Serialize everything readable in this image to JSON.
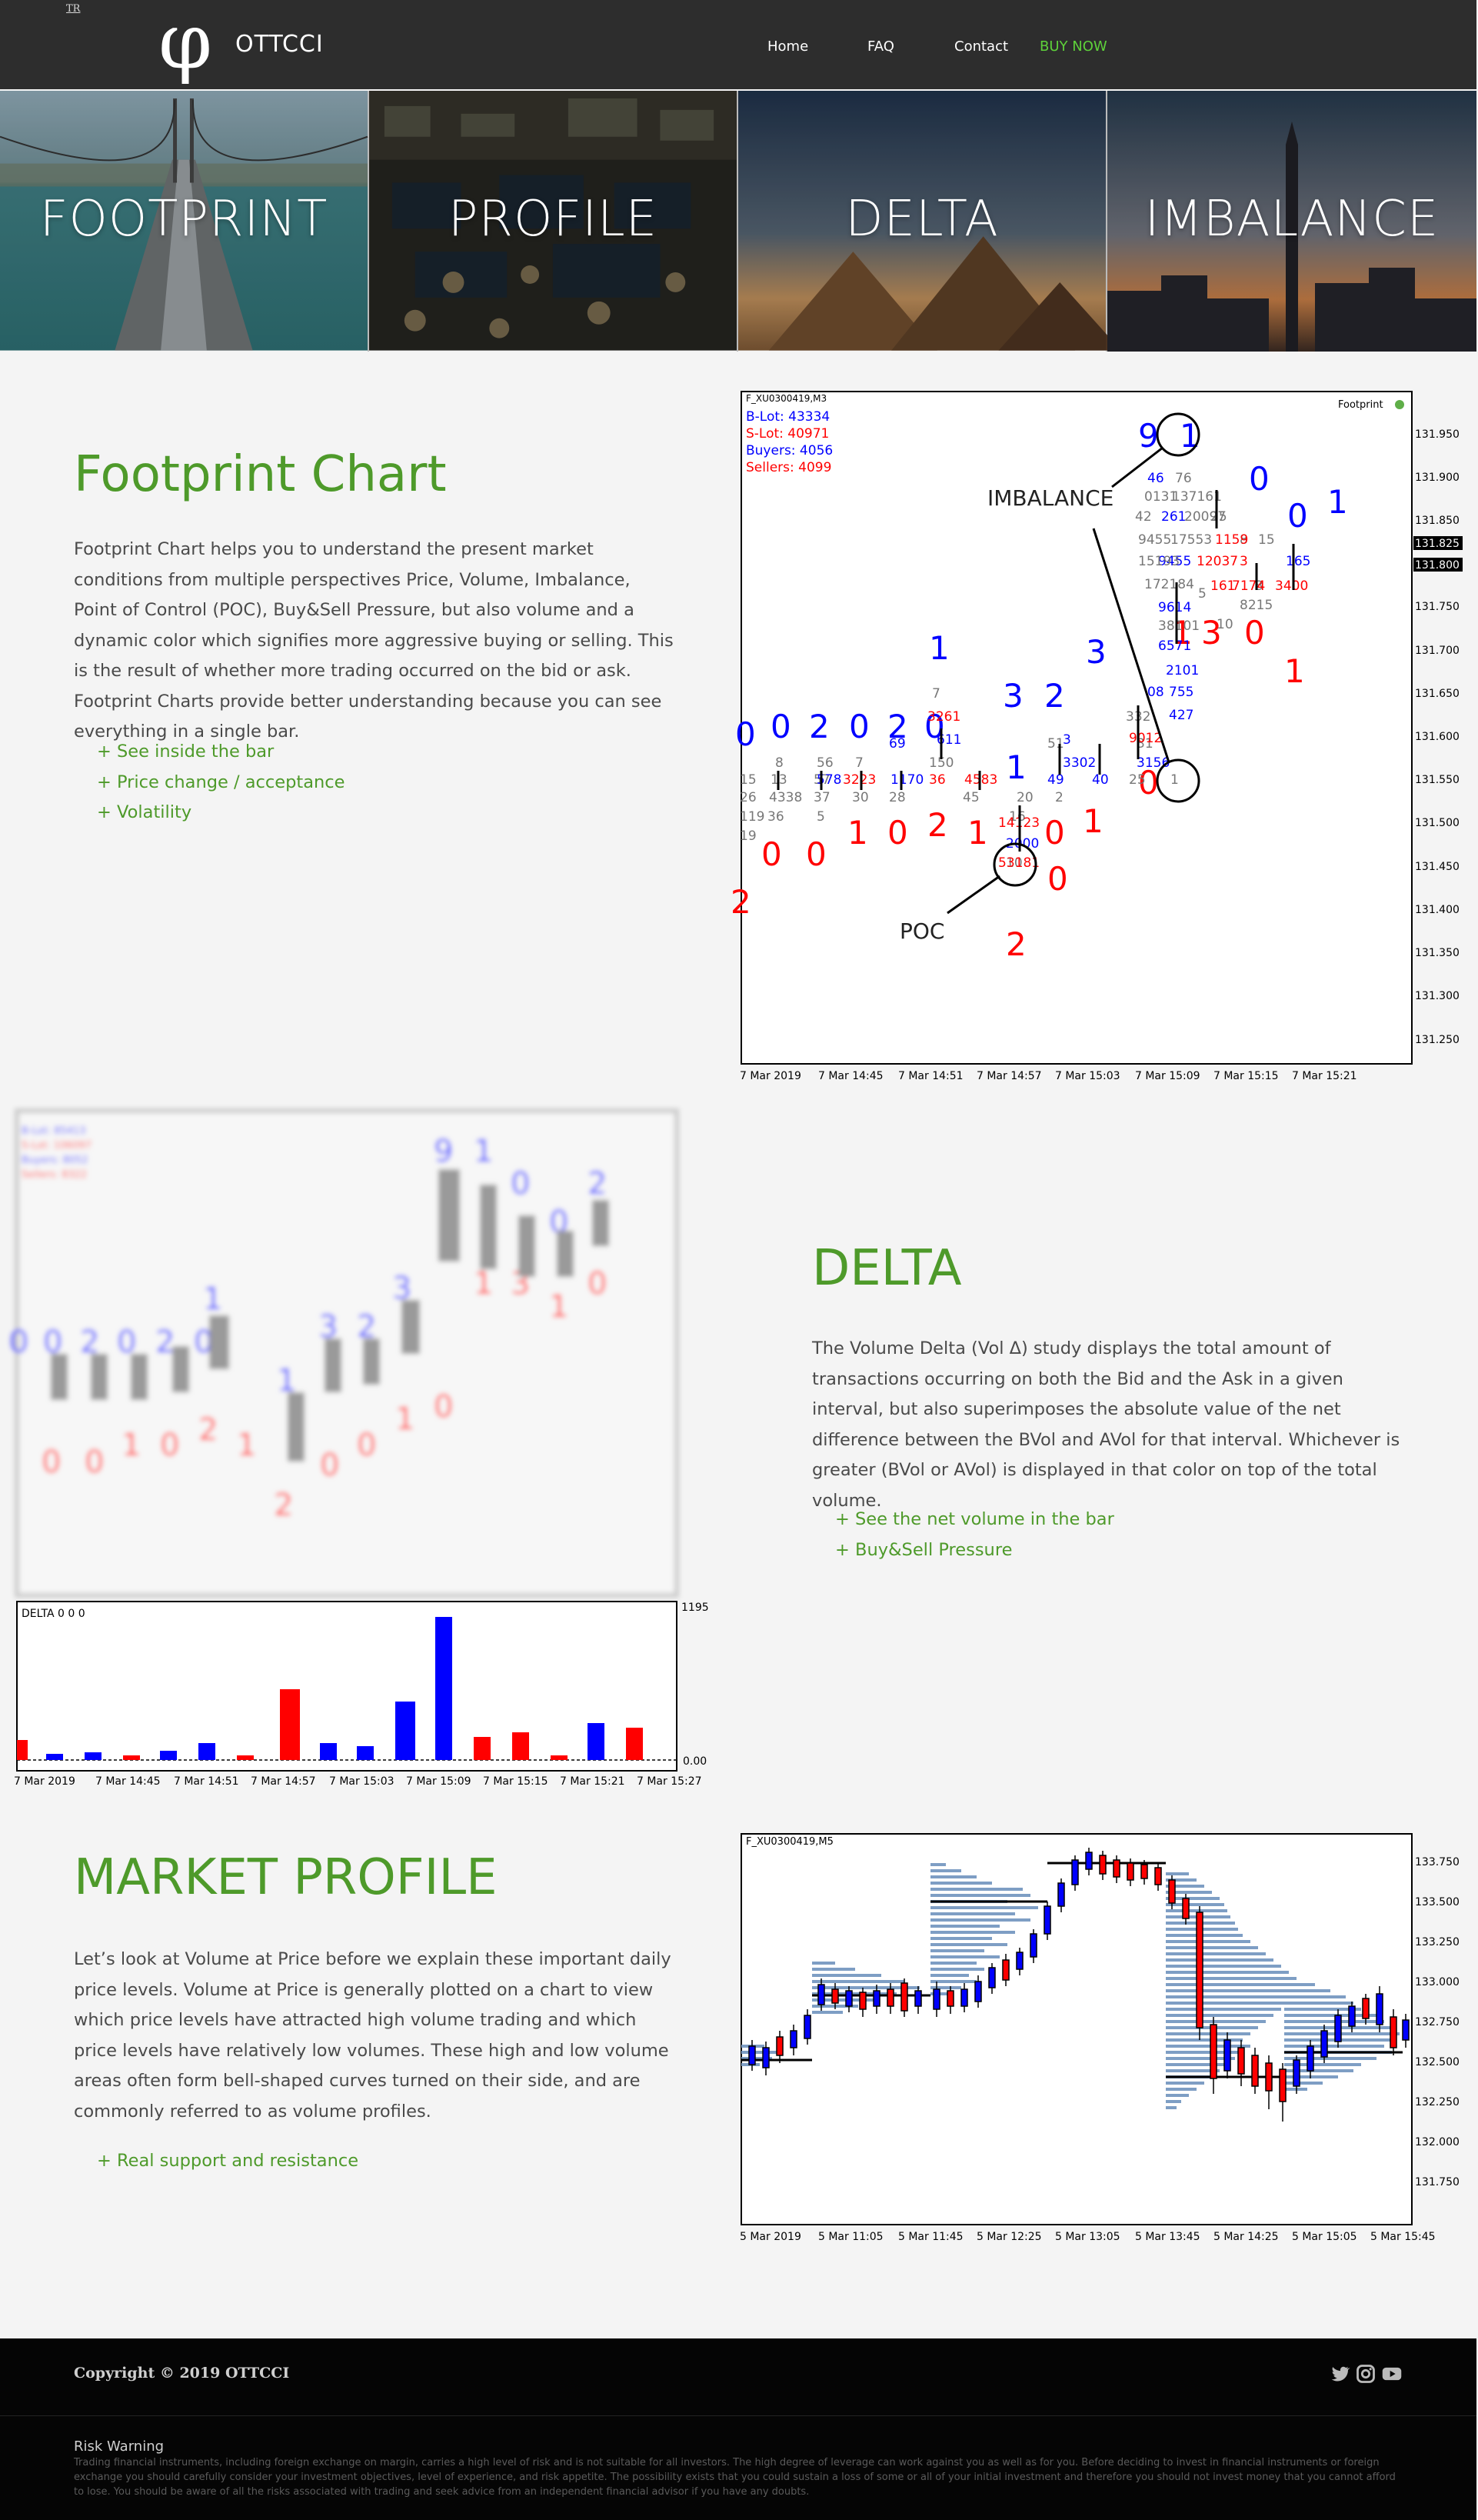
{
  "header": {
    "lang": "TR",
    "logo_symbol": "φ",
    "logo_text": "OTTCCI",
    "nav": [
      {
        "label": "Home",
        "highlight": false
      },
      {
        "label": "FAQ",
        "highlight": false
      },
      {
        "label": "Contact",
        "highlight": false
      },
      {
        "label": "BUY NOW",
        "highlight": true
      }
    ]
  },
  "hero": {
    "tiles": [
      {
        "label": "FOOTPRINT",
        "scene": "bridge over sea"
      },
      {
        "label": "PROFILE",
        "scene": "trading floor"
      },
      {
        "label": "DELTA",
        "scene": "pyramids at dusk"
      },
      {
        "label": "IMBALANCE",
        "scene": "city skyline at dusk"
      }
    ]
  },
  "footprint": {
    "title": "Footprint Chart",
    "body": "Footprint Chart helps you to understand the present market conditions from multiple perspectives Price, Volume, Imbalance, Point of Control (POC), Buy&Sell Pressure, but also volume and a dynamic color which signifies more aggressive buying or selling. This is the result of whether more trading occurred on the bid or ask. Footprint Charts provide better understanding because you can see everything in a single bar.",
    "bullets": [
      "+ See inside the bar",
      "+ Price change / acceptance",
      "+ Volatility"
    ],
    "chart": {
      "symbol": "F_XU0300419,M3",
      "indicator": "Footprint",
      "stats": [
        "B-Lot: 43334",
        "S-Lot: 40971",
        "Buyers: 4056",
        "Sellers: 4099"
      ],
      "annotations": [
        "IMBALANCE",
        "POC"
      ],
      "price_ticks": [
        "131.950",
        "131.900",
        "131.850",
        "131.825",
        "131.800",
        "131.750",
        "131.700",
        "131.650",
        "131.600",
        "131.550",
        "131.500",
        "131.450",
        "131.400",
        "131.350",
        "131.300",
        "131.250"
      ],
      "time_ticks": [
        "7 Mar 2019",
        "7 Mar 14:45",
        "7 Mar 14:51",
        "7 Mar 14:57",
        "7 Mar 15:03",
        "7 Mar 15:09",
        "7 Mar 15:15",
        "7 Mar 15:21"
      ]
    }
  },
  "delta": {
    "title": "DELTA",
    "body": "The Volume Delta (Vol Δ) study displays the total amount of transactions occurring on both the Bid and the Ask in a given interval, but also superimposes the absolute value of the net difference between the BVol and AVol for that interval. Whichever is greater (BVol or AVol) is displayed in that color on top of the total volume.",
    "bullets": [
      "+ See the net volume in the bar",
      "+ Buy&Sell Pressure"
    ],
    "chart": {
      "panel_label": "DELTA  0 0 0",
      "max_label": "1195",
      "zero_label": "0.00",
      "time_ticks": [
        "7 Mar 2019",
        "7 Mar 14:45",
        "7 Mar 14:51",
        "7 Mar 14:57",
        "7 Mar 15:03",
        "7 Mar 15:09",
        "7 Mar 15:15",
        "7 Mar 15:21",
        "7 Mar 15:27"
      ]
    }
  },
  "market_profile": {
    "title": "MARKET PROFILE",
    "body": "Let’s look at Volume at Price before we explain these important daily price levels. Volume at Price is generally plotted on a chart to view which price levels have attracted high volume trading and which price levels have relatively low volumes. These high and low volume areas often form bell-shaped curves turned on their side, and are commonly referred to as volume profiles.",
    "bullets": [
      "+ Real support and resistance"
    ],
    "chart": {
      "symbol": "F_XU0300419,M5",
      "price_ticks": [
        "133.750",
        "133.500",
        "133.250",
        "133.000",
        "132.750",
        "132.500",
        "132.250",
        "132.000",
        "131.750"
      ],
      "time_ticks": [
        "5 Mar 2019",
        "5 Mar 11:05",
        "5 Mar 11:45",
        "5 Mar 12:25",
        "5 Mar 13:05",
        "5 Mar 13:45",
        "5 Mar 14:25",
        "5 Mar 15:05",
        "5 Mar 15:45"
      ]
    }
  },
  "footer": {
    "copyright": "Copyright © 2019 OTTCCI",
    "social": [
      "twitter-icon",
      "instagram-icon",
      "youtube-icon"
    ],
    "risk_title": "Risk Warning",
    "risk_text": "Trading financial instruments, including foreign exchange on margin, carries a high level of risk and is not suitable for all investors. The high degree of leverage can work against you as well as for you. Before deciding to invest in financial instruments or foreign exchange you should carefully consider your investment objectives, level of experience, and risk appetite. The possibility exists that you could sustain a loss of some or all of your initial investment and therefore you should not invest money that you cannot afford to lose. You should be aware of all the risks associated with trading and seek advice from an independent financial advisor if you have any doubts."
  },
  "colors": {
    "accent_green": "#4e9a2a",
    "buy_now": "#5ed13a",
    "header_bg": "#2d2d2d",
    "buy_blue": "#0000ff",
    "sell_red": "#ff0000"
  }
}
